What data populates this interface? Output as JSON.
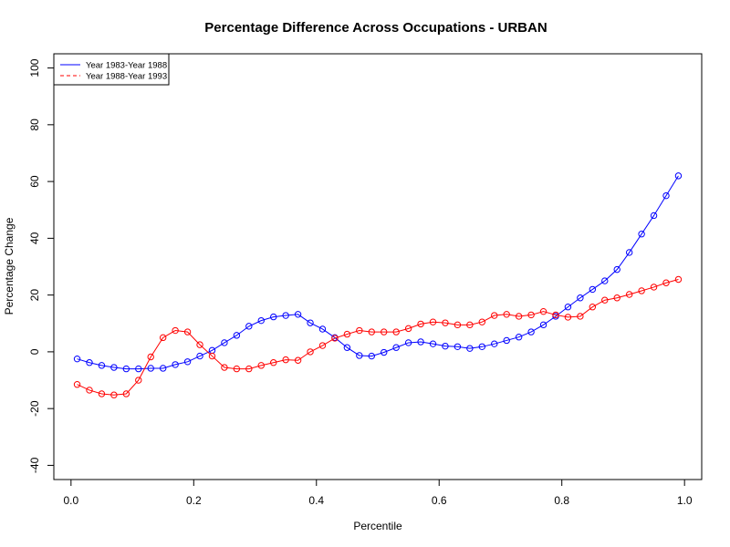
{
  "chart_data": {
    "type": "line",
    "title": "Percentage Difference Across Occupations - URBAN",
    "xlabel": "Percentile",
    "ylabel": "Percentage Change",
    "xlim": [
      -0.028,
      1.028
    ],
    "ylim": [
      -45,
      105
    ],
    "x_ticks": [
      0.0,
      0.2,
      0.4,
      0.6,
      0.8,
      1.0
    ],
    "x_tick_labels": [
      "0.0",
      "0.2",
      "0.4",
      "0.6",
      "0.8",
      "1.0"
    ],
    "y_ticks": [
      -40,
      -20,
      0,
      20,
      40,
      60,
      80,
      100
    ],
    "y_tick_labels": [
      "-40",
      "-20",
      "0",
      "20",
      "40",
      "60",
      "80",
      "100"
    ],
    "grid": false,
    "legend_position": "top-left",
    "x": [
      0.01,
      0.03,
      0.05,
      0.07,
      0.09,
      0.11,
      0.13,
      0.15,
      0.17,
      0.19,
      0.21,
      0.23,
      0.25,
      0.27,
      0.29,
      0.31,
      0.33,
      0.35,
      0.37,
      0.39,
      0.41,
      0.43,
      0.45,
      0.47,
      0.49,
      0.51,
      0.53,
      0.55,
      0.57,
      0.59,
      0.61,
      0.63,
      0.65,
      0.67,
      0.69,
      0.71,
      0.73,
      0.75,
      0.77,
      0.79,
      0.81,
      0.83,
      0.85,
      0.87,
      0.89,
      0.91,
      0.93,
      0.95,
      0.97,
      0.99
    ],
    "series": [
      {
        "name": "Year 1983-Year 1988",
        "color": "#0000ff",
        "line_style": "solid",
        "marker": "circle",
        "values": [
          -2.5,
          -3.8,
          -4.8,
          -5.5,
          -6.0,
          -6.0,
          -5.8,
          -5.8,
          -4.5,
          -3.5,
          -1.5,
          0.5,
          3.2,
          5.8,
          9.0,
          11.0,
          12.3,
          12.8,
          13.2,
          10.2,
          8.0,
          5.0,
          1.5,
          -1.3,
          -1.5,
          -0.2,
          1.5,
          3.2,
          3.5,
          2.8,
          2.0,
          1.8,
          1.2,
          1.8,
          2.8,
          4.0,
          5.2,
          7.0,
          9.5,
          12.5,
          15.8,
          19.0,
          22.0,
          25.0,
          29.0,
          35.0,
          41.5,
          48.0,
          55.0,
          62.0
        ]
      },
      {
        "name": "Year 1988-Year 1993",
        "color": "#ff0000",
        "line_style": "dashed",
        "marker": "circle",
        "values": [
          -11.5,
          -13.5,
          -14.8,
          -15.2,
          -14.8,
          -10.0,
          -1.8,
          5.0,
          7.5,
          7.0,
          2.5,
          -1.5,
          -5.5,
          -6.0,
          -6.0,
          -4.8,
          -3.8,
          -2.8,
          -3.0,
          0.0,
          2.2,
          4.8,
          6.2,
          7.5,
          7.0,
          7.0,
          7.0,
          8.2,
          9.8,
          10.5,
          10.2,
          9.5,
          9.5,
          10.5,
          12.8,
          13.2,
          12.5,
          13.0,
          14.2,
          13.0,
          12.2,
          12.5,
          15.8,
          18.2,
          19.0,
          20.2,
          21.5,
          22.8,
          24.3,
          25.5
        ]
      }
    ]
  }
}
